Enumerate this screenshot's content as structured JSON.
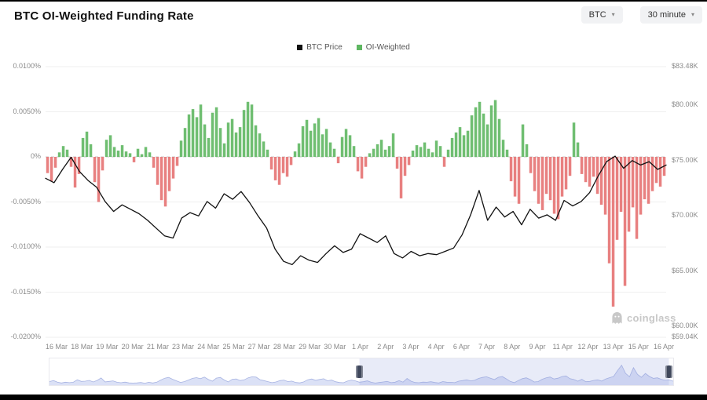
{
  "header": {
    "title": "BTC OI-Weighted Funding Rate",
    "symbol_select": "BTC",
    "interval_select": "30 minute"
  },
  "legend": [
    {
      "label": "BTC Price",
      "color": "#111111"
    },
    {
      "label": "OI-Weighted",
      "color": "#5fb762"
    }
  ],
  "watermark": "coinglass",
  "colors": {
    "green": "#5fb762",
    "red": "#e57272",
    "price": "#111111",
    "grid": "#efefef",
    "zero_line": "#c8c8c8",
    "axis_text": "#8a8a8a",
    "control_bg": "#f1f2f4",
    "watermark": "#c8c8c8",
    "nav_fill": "#dbe1f6",
    "nav_stroke": "#a7b3e2",
    "nav_overlay": "rgba(148,165,223,0.22)",
    "nav_handle": "#40485c"
  },
  "navigator": {
    "selection_start": 0.497,
    "selection_end": 0.993
  },
  "chart_data": {
    "type": "bar+line",
    "title": "BTC OI-Weighted Funding Rate",
    "grid": true,
    "legend_position": "top-center",
    "x_range": [
      "16 Mar",
      "16 Apr"
    ],
    "x_tick_labels": [
      "16 Mar",
      "18 Mar",
      "19 Mar",
      "20 Mar",
      "21 Mar",
      "23 Mar",
      "24 Mar",
      "25 Mar",
      "27 Mar",
      "28 Mar",
      "29 Mar",
      "30 Mar",
      "1 Apr",
      "2 Apr",
      "3 Apr",
      "4 Apr",
      "6 Apr",
      "7 Apr",
      "8 Apr",
      "9 Apr",
      "11 Apr",
      "12 Apr",
      "13 Apr",
      "15 Apr",
      "16 Apr"
    ],
    "left_axis": {
      "title": "OI-Weighted Funding Rate",
      "unit": "%",
      "min": -0.02,
      "max": 0.01,
      "tick_values": [
        0.01,
        0.005,
        0,
        -0.005,
        -0.01,
        -0.015,
        -0.02
      ],
      "tick_labels": [
        "0.0100%",
        "0.0050%",
        "0%",
        "-0.0050%",
        "-0.0100%",
        "-0.0150%",
        "-0.0200%"
      ]
    },
    "right_axis": {
      "title": "BTC Price",
      "unit": "K USD",
      "min": 59.04,
      "max": 83.48,
      "tick_values": [
        83.48,
        80,
        75,
        70,
        65,
        60,
        59.04
      ],
      "tick_labels": [
        "$83.48K",
        "$80.00K",
        "$75.00K",
        "$70.00K",
        "$65.00K",
        "$60.00K",
        "$59.04K"
      ]
    },
    "series": [
      {
        "name": "OI-Weighted",
        "type": "bar",
        "yaxis": "left",
        "unit": "%",
        "positive_color": "#5fb762",
        "negative_color": "#e57272",
        "values": [
          -0.0018,
          -0.0027,
          -0.0012,
          0.0005,
          0.0012,
          0.0008,
          -0.0011,
          -0.0034,
          -0.0019,
          0.0021,
          0.0028,
          0.0014,
          -0.0028,
          -0.005,
          -0.0015,
          0.0019,
          0.0024,
          0.0011,
          0.0007,
          0.0013,
          0.0006,
          0.0004,
          -0.0006,
          0.0009,
          0.0003,
          0.0011,
          0.0005,
          -0.0012,
          -0.0031,
          -0.0048,
          -0.0055,
          -0.0038,
          -0.0024,
          -0.001,
          0.0018,
          0.0032,
          0.0047,
          0.0053,
          0.0044,
          0.0058,
          0.0036,
          0.0021,
          0.0049,
          0.0055,
          0.0032,
          0.0015,
          0.0038,
          0.0042,
          0.0027,
          0.0033,
          0.0052,
          0.0061,
          0.0058,
          0.0035,
          0.0026,
          0.0017,
          0.0008,
          -0.0014,
          -0.0026,
          -0.0031,
          -0.0018,
          -0.0022,
          -0.0009,
          0.0006,
          0.0015,
          0.0034,
          0.0041,
          0.0029,
          0.0037,
          0.0043,
          0.0025,
          0.0031,
          0.0016,
          0.0009,
          -0.0007,
          0.0022,
          0.0031,
          0.0024,
          0.0012,
          -0.0016,
          -0.0024,
          -0.0011,
          0.0004,
          0.0009,
          0.0014,
          0.0019,
          0.0008,
          0.0012,
          0.0026,
          -0.0013,
          -0.0046,
          -0.0021,
          -0.0009,
          0.0007,
          0.0013,
          0.0011,
          0.0016,
          0.0009,
          0.0005,
          0.0018,
          0.0012,
          -0.0011,
          0.0008,
          0.0021,
          0.0027,
          0.0033,
          0.0024,
          0.0029,
          0.0046,
          0.0055,
          0.0061,
          0.0048,
          0.0036,
          0.0057,
          0.0063,
          0.0042,
          0.0019,
          0.0008,
          -0.0027,
          -0.0044,
          -0.0052,
          0.0036,
          0.0014,
          -0.0018,
          -0.0038,
          -0.0052,
          -0.0059,
          -0.0041,
          -0.0048,
          -0.0063,
          -0.0069,
          -0.0044,
          -0.0036,
          -0.0021,
          0.0038,
          0.0016,
          -0.0019,
          -0.0028,
          -0.0033,
          -0.0022,
          -0.0041,
          -0.0053,
          -0.0064,
          -0.0118,
          -0.0166,
          -0.0092,
          -0.0061,
          -0.0143,
          -0.0083,
          -0.0056,
          -0.0091,
          -0.0064,
          -0.0047,
          -0.0052,
          -0.0038,
          -0.0029,
          -0.0033,
          -0.0021
        ]
      },
      {
        "name": "BTC Price",
        "type": "line",
        "yaxis": "right",
        "unit": "K USD",
        "color": "#111111",
        "values": [
          73.4,
          73.0,
          74.2,
          75.3,
          74.0,
          73.2,
          72.6,
          71.3,
          70.4,
          71.0,
          70.6,
          70.2,
          69.6,
          68.9,
          68.2,
          68.0,
          69.8,
          70.3,
          70.0,
          71.3,
          70.7,
          72.0,
          71.5,
          72.2,
          71.2,
          70.0,
          68.9,
          67.0,
          65.9,
          65.6,
          66.4,
          66.0,
          65.8,
          66.6,
          67.3,
          66.7,
          67.0,
          68.4,
          68.0,
          67.6,
          68.2,
          66.6,
          66.2,
          66.8,
          66.4,
          66.6,
          66.5,
          66.8,
          67.1,
          68.3,
          70.1,
          72.3,
          69.6,
          70.8,
          69.9,
          70.4,
          69.2,
          70.6,
          69.8,
          70.1,
          69.6,
          71.4,
          70.9,
          71.3,
          72.1,
          73.6,
          74.9,
          75.4,
          74.3,
          75.0,
          74.6,
          74.9,
          74.2,
          74.6
        ]
      }
    ]
  }
}
